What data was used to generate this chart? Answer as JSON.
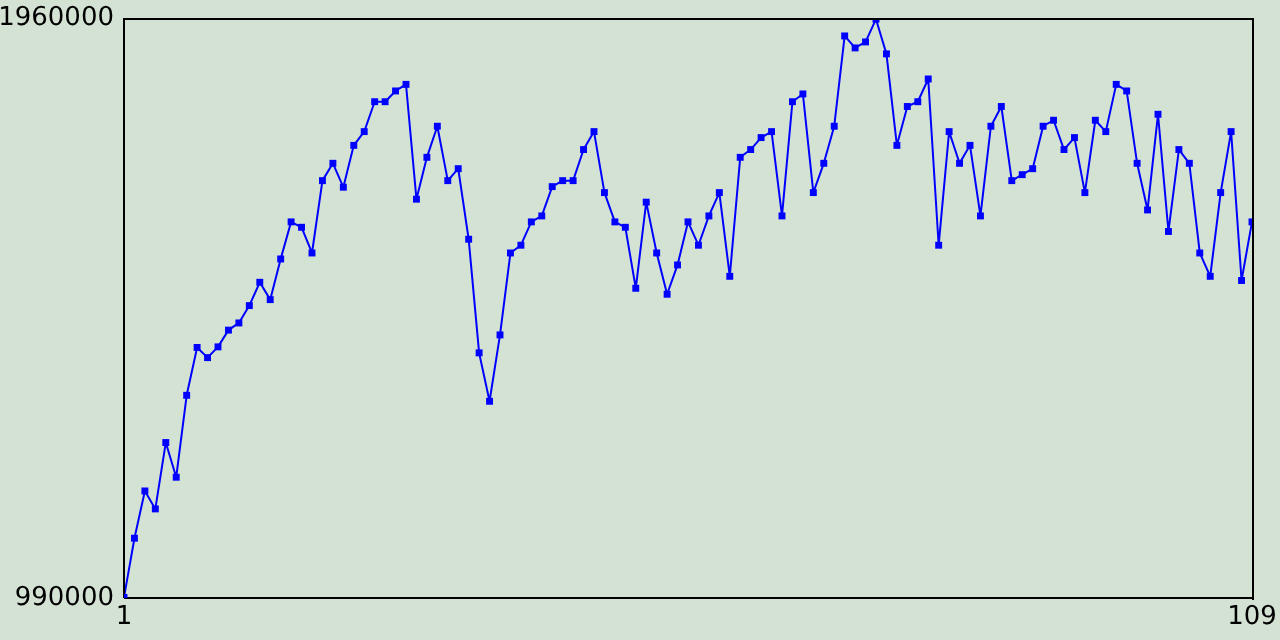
{
  "chart_data": {
    "type": "line",
    "x": [
      1,
      2,
      3,
      4,
      5,
      6,
      7,
      8,
      9,
      10,
      11,
      12,
      13,
      14,
      15,
      16,
      17,
      18,
      19,
      20,
      21,
      22,
      23,
      24,
      25,
      26,
      27,
      28,
      29,
      30,
      31,
      32,
      33,
      34,
      35,
      36,
      37,
      38,
      39,
      40,
      41,
      42,
      43,
      44,
      45,
      46,
      47,
      48,
      49,
      50,
      51,
      52,
      53,
      54,
      55,
      56,
      57,
      58,
      59,
      60,
      61,
      62,
      63,
      64,
      65,
      66,
      67,
      68,
      69,
      70,
      71,
      72,
      73,
      74,
      75,
      76,
      77,
      78,
      79,
      80,
      81,
      82,
      83,
      84,
      85,
      86,
      87,
      88,
      89,
      90,
      91,
      92,
      93,
      94,
      95,
      96,
      97,
      98,
      99,
      100,
      101,
      102,
      103,
      104,
      105,
      106,
      107,
      108,
      109
    ],
    "series": [
      {
        "color": "#0000ff",
        "values": [
          991000,
          1090000,
          1169000,
          1139000,
          1250000,
          1192000,
          1329000,
          1409000,
          1392000,
          1410000,
          1438000,
          1450000,
          1479000,
          1518000,
          1489000,
          1557000,
          1619000,
          1610000,
          1567000,
          1688000,
          1717000,
          1677000,
          1747000,
          1770000,
          1820000,
          1820000,
          1838000,
          1849000,
          1657000,
          1727000,
          1779000,
          1688000,
          1708000,
          1590000,
          1400000,
          1319000,
          1430000,
          1567000,
          1580000,
          1619000,
          1629000,
          1678000,
          1688000,
          1688000,
          1740000,
          1770000,
          1668000,
          1619000,
          1610000,
          1508000,
          1652000,
          1567000,
          1498000,
          1547000,
          1619000,
          1580000,
          1629000,
          1668000,
          1528000,
          1727000,
          1740000,
          1760000,
          1770000,
          1629000,
          1820000,
          1833000,
          1668000,
          1717000,
          1779000,
          1930000,
          1910000,
          1920000,
          1958000,
          1900000,
          1747000,
          1812000,
          1820000,
          1858000,
          1580000,
          1770000,
          1717000,
          1747000,
          1629000,
          1779000,
          1812000,
          1688000,
          1698000,
          1708000,
          1779000,
          1789000,
          1740000,
          1760000,
          1668000,
          1789000,
          1770000,
          1849000,
          1838000,
          1717000,
          1639000,
          1799000,
          1603000,
          1740000,
          1717000,
          1567000,
          1528000,
          1668000,
          1770000,
          1521000,
          1619000
        ]
      }
    ],
    "xlim": [
      1,
      109
    ],
    "xticks": [
      1,
      109
    ],
    "ylim": [
      990000,
      1960000
    ],
    "yticks": [
      990000,
      1960000
    ],
    "grid": false,
    "marker": "square",
    "line_style": "solid"
  }
}
